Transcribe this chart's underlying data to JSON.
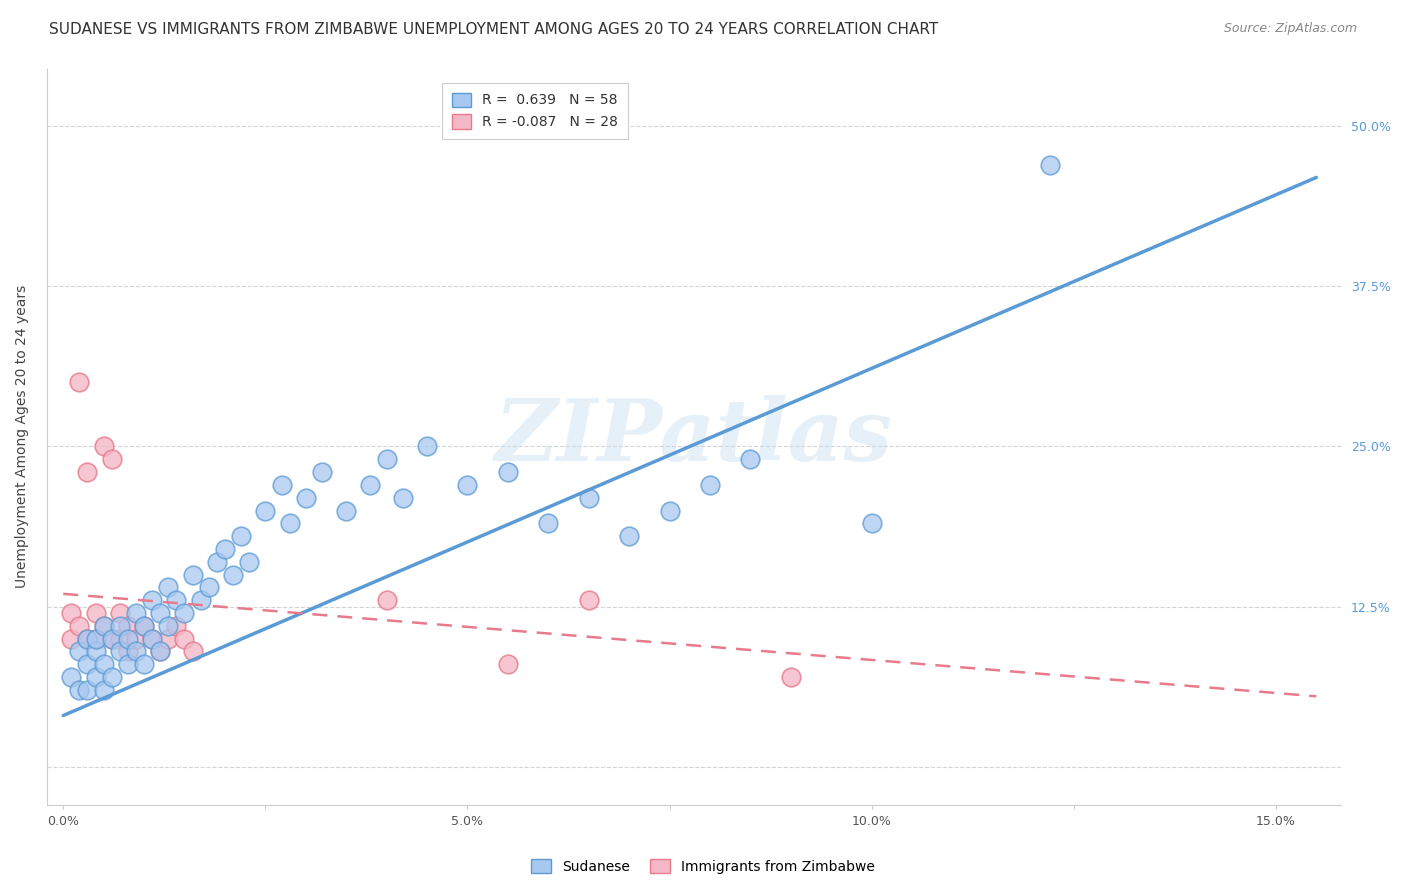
{
  "title": "SUDANESE VS IMMIGRANTS FROM ZIMBABWE UNEMPLOYMENT AMONG AGES 20 TO 24 YEARS CORRELATION CHART",
  "source": "Source: ZipAtlas.com",
  "ylabel_label": "Unemployment Among Ages 20 to 24 years",
  "xlim": [
    -0.002,
    0.158
  ],
  "ylim": [
    -0.03,
    0.545
  ],
  "watermark_text": "ZIPatlas",
  "xticks": [
    0.0,
    0.025,
    0.05,
    0.075,
    0.1,
    0.125,
    0.15
  ],
  "xlabels": [
    "0.0%",
    "",
    "5.0%",
    "",
    "10.0%",
    "",
    "15.0%"
  ],
  "yticks": [
    0.0,
    0.125,
    0.25,
    0.375,
    0.5
  ],
  "ylabels_right": [
    "",
    "12.5%",
    "25.0%",
    "37.5%",
    "50.0%"
  ],
  "blue_line_x": [
    0.0,
    0.155
  ],
  "blue_line_y": [
    0.04,
    0.46
  ],
  "pink_line_x": [
    0.0,
    0.155
  ],
  "pink_line_y": [
    0.135,
    0.055
  ],
  "blue_color": "#5b9bd5",
  "pink_color": "#e87a8c",
  "scatter_blue_face": "#a8c8f0",
  "scatter_blue_edge": "#5b9bd5",
  "scatter_pink_face": "#f4b8c8",
  "scatter_pink_edge": "#e87a8c",
  "grid_color": "#d0d0d0",
  "background_color": "#ffffff",
  "title_fontsize": 11,
  "source_fontsize": 9,
  "axis_label_fontsize": 10,
  "tick_fontsize": 9,
  "right_tick_color": "#5b9bd5",
  "sudanese_x": [
    0.001,
    0.002,
    0.002,
    0.003,
    0.003,
    0.003,
    0.004,
    0.004,
    0.004,
    0.005,
    0.005,
    0.005,
    0.006,
    0.006,
    0.007,
    0.007,
    0.008,
    0.008,
    0.009,
    0.009,
    0.01,
    0.01,
    0.011,
    0.011,
    0.012,
    0.012,
    0.013,
    0.013,
    0.014,
    0.015,
    0.016,
    0.017,
    0.018,
    0.019,
    0.02,
    0.021,
    0.022,
    0.023,
    0.025,
    0.027,
    0.028,
    0.03,
    0.032,
    0.035,
    0.038,
    0.04,
    0.042,
    0.045,
    0.05,
    0.055,
    0.06,
    0.065,
    0.07,
    0.075,
    0.08,
    0.085,
    0.1,
    0.122
  ],
  "sudanese_y": [
    0.07,
    0.09,
    0.06,
    0.1,
    0.08,
    0.06,
    0.09,
    0.07,
    0.1,
    0.11,
    0.08,
    0.06,
    0.1,
    0.07,
    0.09,
    0.11,
    0.1,
    0.08,
    0.12,
    0.09,
    0.11,
    0.08,
    0.13,
    0.1,
    0.12,
    0.09,
    0.14,
    0.11,
    0.13,
    0.12,
    0.15,
    0.13,
    0.14,
    0.16,
    0.17,
    0.15,
    0.18,
    0.16,
    0.2,
    0.22,
    0.19,
    0.21,
    0.23,
    0.2,
    0.22,
    0.24,
    0.21,
    0.25,
    0.22,
    0.23,
    0.19,
    0.21,
    0.18,
    0.2,
    0.22,
    0.24,
    0.19,
    0.47
  ],
  "zimbabwe_x": [
    0.001,
    0.001,
    0.002,
    0.002,
    0.003,
    0.003,
    0.004,
    0.004,
    0.005,
    0.005,
    0.006,
    0.006,
    0.007,
    0.007,
    0.008,
    0.008,
    0.009,
    0.01,
    0.011,
    0.012,
    0.013,
    0.014,
    0.015,
    0.016,
    0.04,
    0.055,
    0.065,
    0.09
  ],
  "zimbabwe_y": [
    0.1,
    0.12,
    0.3,
    0.11,
    0.23,
    0.1,
    0.12,
    0.1,
    0.25,
    0.11,
    0.24,
    0.1,
    0.12,
    0.1,
    0.11,
    0.09,
    0.1,
    0.11,
    0.1,
    0.09,
    0.1,
    0.11,
    0.1,
    0.09,
    0.13,
    0.08,
    0.13,
    0.07
  ]
}
